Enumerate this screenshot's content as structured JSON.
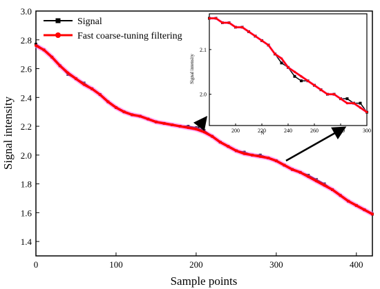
{
  "chart_data": [
    {
      "type": "line",
      "title": "",
      "xlabel": "Sample points",
      "ylabel": "Signal intensity",
      "xlim": [
        0,
        420
      ],
      "ylim": [
        1.3,
        3.0
      ],
      "xticks": [
        0,
        100,
        200,
        300,
        400
      ],
      "yticks": [
        1.4,
        1.6,
        1.8,
        2.0,
        2.2,
        2.4,
        2.6,
        2.8,
        3.0
      ],
      "legend_position": "top-center",
      "grid": false,
      "series": [
        {
          "name": "Signal",
          "color": "#000000",
          "marker": "square",
          "x": [
            0,
            10,
            20,
            30,
            40,
            50,
            60,
            70,
            80,
            90,
            100,
            110,
            120,
            130,
            140,
            150,
            160,
            170,
            180,
            190,
            200,
            210,
            220,
            230,
            240,
            250,
            260,
            270,
            280,
            290,
            300,
            310,
            320,
            330,
            340,
            350,
            360,
            370,
            380,
            390,
            400,
            410,
            420
          ],
          "y": [
            2.77,
            2.73,
            2.68,
            2.62,
            2.56,
            2.53,
            2.5,
            2.46,
            2.42,
            2.37,
            2.33,
            2.3,
            2.28,
            2.27,
            2.25,
            2.23,
            2.22,
            2.21,
            2.2,
            2.2,
            2.19,
            2.17,
            2.13,
            2.09,
            2.06,
            2.03,
            2.02,
            2.0,
            2.0,
            1.98,
            1.96,
            1.93,
            1.9,
            1.88,
            1.86,
            1.83,
            1.8,
            1.76,
            1.72,
            1.68,
            1.65,
            1.62,
            1.59
          ]
        },
        {
          "name": "Fast coarse-tuning filtering",
          "color": "#ff0000",
          "marker": "circle",
          "x": [
            0,
            10,
            20,
            30,
            40,
            50,
            60,
            70,
            80,
            90,
            100,
            110,
            120,
            130,
            140,
            150,
            160,
            170,
            180,
            190,
            200,
            210,
            220,
            230,
            240,
            250,
            260,
            270,
            280,
            290,
            300,
            310,
            320,
            330,
            340,
            350,
            360,
            370,
            380,
            390,
            400,
            410,
            420
          ],
          "y": [
            2.76,
            2.73,
            2.68,
            2.62,
            2.57,
            2.53,
            2.49,
            2.46,
            2.42,
            2.37,
            2.33,
            2.3,
            2.28,
            2.27,
            2.25,
            2.23,
            2.22,
            2.21,
            2.2,
            2.19,
            2.18,
            2.16,
            2.13,
            2.09,
            2.06,
            2.03,
            2.01,
            2.0,
            1.99,
            1.98,
            1.96,
            1.93,
            1.9,
            1.88,
            1.85,
            1.82,
            1.79,
            1.76,
            1.72,
            1.68,
            1.65,
            1.62,
            1.59
          ]
        }
      ]
    },
    {
      "type": "line",
      "title": "",
      "xlabel": "N",
      "ylabel": "Signal intensity",
      "xlim": [
        180,
        300
      ],
      "ylim": [
        1.93,
        2.18
      ],
      "xticks": [
        200,
        220,
        240,
        260,
        280,
        300
      ],
      "yticks": [
        2.0,
        2.1
      ],
      "grid": false,
      "series": [
        {
          "name": "Signal",
          "color": "#000000",
          "marker": "square",
          "x": [
            180,
            185,
            190,
            195,
            200,
            205,
            210,
            215,
            220,
            225,
            230,
            235,
            240,
            245,
            250,
            255,
            260,
            265,
            270,
            275,
            280,
            285,
            290,
            295,
            300
          ],
          "y": [
            2.17,
            2.17,
            2.16,
            2.16,
            2.15,
            2.15,
            2.14,
            2.13,
            2.12,
            2.11,
            2.09,
            2.07,
            2.06,
            2.04,
            2.03,
            2.03,
            2.02,
            2.01,
            2.0,
            2.0,
            1.99,
            1.99,
            1.98,
            1.98,
            1.96
          ]
        },
        {
          "name": "Fast coarse-tuning filtering",
          "color": "#ff0000",
          "marker": "circle",
          "x": [
            180,
            185,
            190,
            195,
            200,
            205,
            210,
            215,
            220,
            225,
            230,
            235,
            240,
            245,
            250,
            255,
            260,
            265,
            270,
            275,
            280,
            285,
            290,
            295,
            300
          ],
          "y": [
            2.17,
            2.17,
            2.16,
            2.16,
            2.15,
            2.15,
            2.14,
            2.13,
            2.12,
            2.11,
            2.09,
            2.08,
            2.06,
            2.05,
            2.04,
            2.03,
            2.02,
            2.01,
            2.0,
            2.0,
            1.99,
            1.98,
            1.98,
            1.97,
            1.96
          ]
        }
      ]
    }
  ]
}
